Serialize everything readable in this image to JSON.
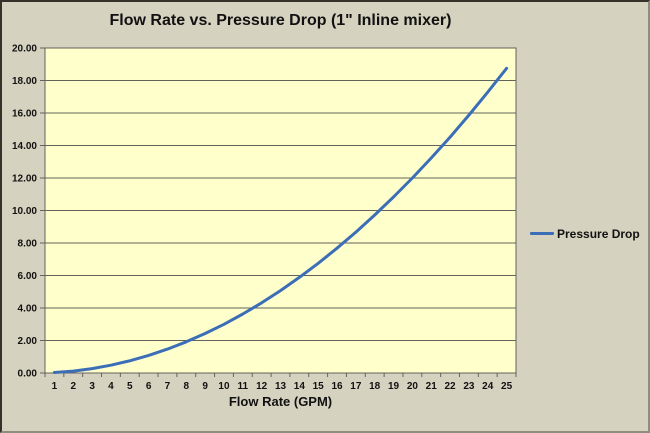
{
  "chart_data": {
    "type": "line",
    "title": "Flow Rate vs. Pressure Drop (1\" Inline mixer)",
    "xlabel": "Flow Rate (GPM)",
    "ylabel": "",
    "x": [
      1,
      2,
      3,
      4,
      5,
      6,
      7,
      8,
      9,
      10,
      11,
      12,
      13,
      14,
      15,
      16,
      17,
      18,
      19,
      20,
      21,
      22,
      23,
      24,
      25
    ],
    "series": [
      {
        "name": "Pressure Drop",
        "values": [
          0.03,
          0.12,
          0.27,
          0.48,
          0.75,
          1.08,
          1.47,
          1.92,
          2.43,
          3.0,
          3.63,
          4.32,
          5.07,
          5.88,
          6.75,
          7.68,
          8.67,
          9.72,
          10.83,
          12.0,
          13.23,
          14.52,
          15.87,
          17.28,
          18.75
        ]
      }
    ],
    "ylim": [
      0,
      20
    ],
    "y_tick_step": 2,
    "y_tick_labels": [
      "0.00",
      "2.00",
      "4.00",
      "6.00",
      "8.00",
      "10.00",
      "12.00",
      "14.00",
      "16.00",
      "18.00",
      "20.00"
    ],
    "x_tick_labels": [
      "1",
      "2",
      "3",
      "4",
      "5",
      "6",
      "7",
      "8",
      "9",
      "10",
      "11",
      "12",
      "13",
      "14",
      "15",
      "16",
      "17",
      "18",
      "19",
      "20",
      "21",
      "22",
      "23",
      "24",
      "25"
    ],
    "grid": "horizontal",
    "legend_position": "right-middle",
    "colors": {
      "series": "#3C6EB8",
      "plot_bg": "#FFFFCC",
      "chart_bg": "#D6D2C0",
      "gridline": "#63635B",
      "text": "#111111"
    }
  }
}
